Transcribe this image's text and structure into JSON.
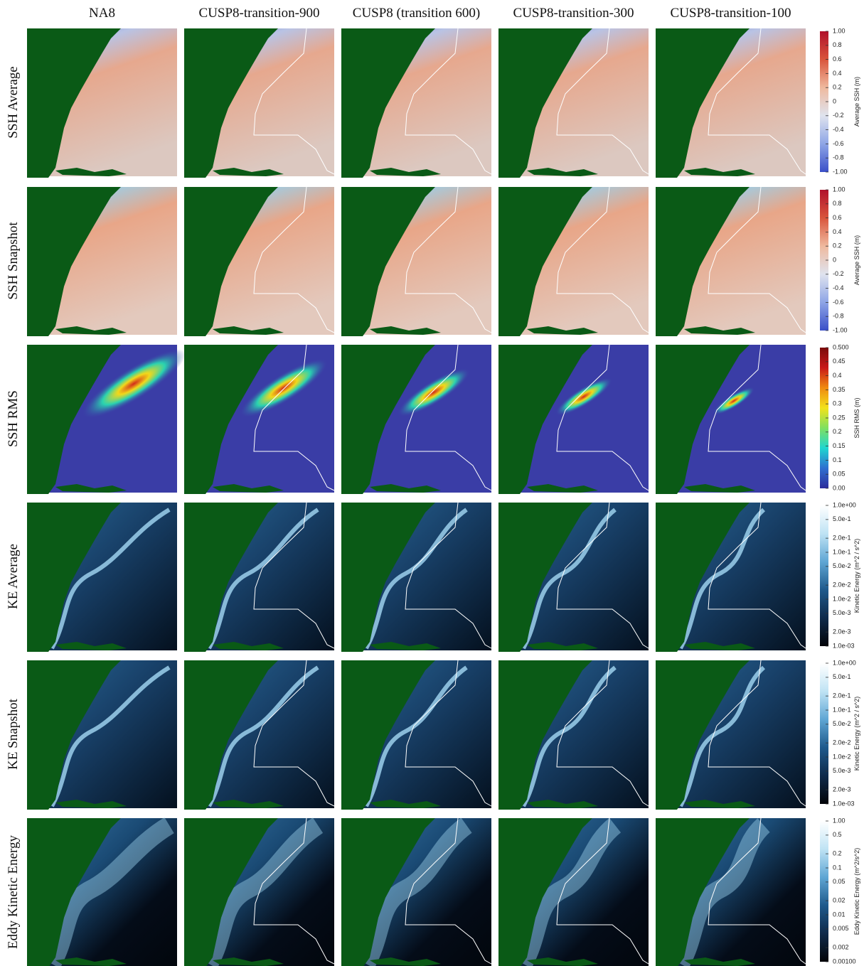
{
  "columns": [
    "NA8",
    "CUSP8-transition-900",
    "CUSP8 (transition 600)",
    "CUSP8-transition-300",
    "CUSP8-transition-100"
  ],
  "rows": [
    {
      "label": "SSH Average",
      "colorbar": {
        "label": "Average SSH (m)",
        "scale": "linear",
        "lim": [
          -1,
          1
        ],
        "colors": [
          "#3a4fc8",
          "#8ea5e6",
          "#dfe3ee",
          "#efb99e",
          "#d9553c",
          "#b0102a"
        ],
        "ticks": [
          {
            "value": 1,
            "label": "1.00"
          },
          0.8,
          0.6,
          0.4,
          0.2,
          0,
          -0.2,
          -0.4,
          -0.6,
          -0.8,
          {
            "value": -1,
            "label": "-1.00"
          }
        ]
      }
    },
    {
      "label": "SSH Snapshot",
      "colorbar": {
        "label": "Average SSH (m)",
        "scale": "linear",
        "lim": [
          -1,
          1
        ],
        "colors": [
          "#3a4fc8",
          "#8ea5e6",
          "#dfe3ee",
          "#efb99e",
          "#d9553c",
          "#b0102a"
        ],
        "ticks": [
          {
            "value": 1,
            "label": "1.00"
          },
          0.8,
          0.6,
          0.4,
          0.2,
          0,
          -0.2,
          -0.4,
          -0.6,
          -0.8,
          {
            "value": -1,
            "label": "-1.00"
          }
        ]
      }
    },
    {
      "label": "SSH RMS",
      "colorbar": {
        "label": "SSH RMS (m)",
        "scale": "linear",
        "lim": [
          0,
          0.5
        ],
        "colors": [
          "#2c2c9c",
          "#2f6fd0",
          "#1fd6d0",
          "#7fe060",
          "#f2e21a",
          "#f08a10",
          "#c81818",
          "#7a0a0a"
        ],
        "ticks": [
          {
            "value": 0.5,
            "label": "0.500"
          },
          0.45,
          0.4,
          0.35,
          0.3,
          0.25,
          0.2,
          0.15,
          0.1,
          0.05,
          {
            "value": 0,
            "label": "0.00"
          }
        ]
      }
    },
    {
      "label": "KE Average",
      "colorbar": {
        "label": "Kinetic Energy (m^2 / s^2)",
        "scale": "log",
        "lim": [
          0.001,
          1
        ],
        "colors": [
          "#020408",
          "#0f2a4a",
          "#1f5a8c",
          "#5fa6d4",
          "#bfe3f4",
          "#ffffff"
        ],
        "ticks": [
          {
            "value": 1,
            "label": "1.0e+00"
          },
          {
            "value": 0.5,
            "label": "5.0e-1"
          },
          {
            "value": 0.2,
            "label": "2.0e-1"
          },
          {
            "value": 0.1,
            "label": "1.0e-1"
          },
          {
            "value": 0.05,
            "label": "5.0e-2"
          },
          {
            "value": 0.02,
            "label": "2.0e-2"
          },
          {
            "value": 0.01,
            "label": "1.0e-2"
          },
          {
            "value": 0.005,
            "label": "5.0e-3"
          },
          {
            "value": 0.002,
            "label": "2.0e-3"
          },
          {
            "value": 0.001,
            "label": "1.0e-03"
          }
        ]
      }
    },
    {
      "label": "KE Snapshot",
      "colorbar": {
        "label": "Kinetic Energy (m^2 / s^2)",
        "scale": "log",
        "lim": [
          0.001,
          1
        ],
        "colors": [
          "#020408",
          "#0f2a4a",
          "#1f5a8c",
          "#5fa6d4",
          "#bfe3f4",
          "#ffffff"
        ],
        "ticks": [
          {
            "value": 1,
            "label": "1.0e+00"
          },
          {
            "value": 0.5,
            "label": "5.0e-1"
          },
          {
            "value": 0.2,
            "label": "2.0e-1"
          },
          {
            "value": 0.1,
            "label": "1.0e-1"
          },
          {
            "value": 0.05,
            "label": "5.0e-2"
          },
          {
            "value": 0.02,
            "label": "2.0e-2"
          },
          {
            "value": 0.01,
            "label": "1.0e-2"
          },
          {
            "value": 0.005,
            "label": "5.0e-3"
          },
          {
            "value": 0.002,
            "label": "2.0e-3"
          },
          {
            "value": 0.001,
            "label": "1.0e-03"
          }
        ]
      }
    },
    {
      "label": "Eddy Kinetic Energy",
      "colorbar": {
        "label": "Eddy Kinetic Energy (m^2/s^2)",
        "scale": "log",
        "lim": [
          0.001,
          1
        ],
        "colors": [
          "#020408",
          "#0f2a4a",
          "#1f5a8c",
          "#5fa6d4",
          "#bfe3f4",
          "#ffffff"
        ],
        "ticks": [
          {
            "value": 1,
            "label": "1.00"
          },
          0.5,
          0.2,
          0.1,
          0.05,
          0.02,
          0.01,
          0.005,
          0.002,
          {
            "value": 0.001,
            "label": "0.00100"
          }
        ]
      }
    }
  ]
}
